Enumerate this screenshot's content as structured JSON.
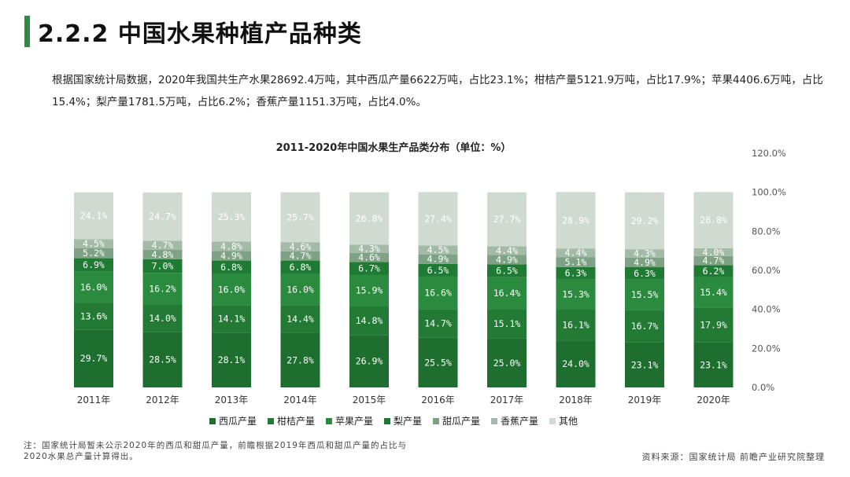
{
  "page": {
    "title": "2.2.2 中国水果种植产品种类",
    "summary": "根据国家统计局数据，2020年我国共生产水果28692.4万吨，其中西瓜产量6622万吨，占比23.1%；柑桔产量5121.9万吨，占比17.9%；苹果4406.6万吨，占比15.4%；梨产量1781.5万吨，占比6.2%；香蕉产量1151.3万吨，占比4.0%。",
    "note_line1": "注：国家统计局暂未公示2020年的西瓜和甜瓜产量，前瞻根据2019年西瓜和甜瓜产量的占比与",
    "note_line2": "2020水果总产量计算得出。",
    "source": "资料来源：国家统计局 前瞻产业研究院整理"
  },
  "chart_data": {
    "type": "bar",
    "stacked": true,
    "title": "2011-2020年中国水果生产品类分布（单位：%）",
    "categories": [
      "2011年",
      "2012年",
      "2013年",
      "2014年",
      "2015年",
      "2016年",
      "2017年",
      "2018年",
      "2019年",
      "2020年"
    ],
    "ylim": [
      0,
      120
    ],
    "y_ticks": [
      "0.0%",
      "20.0%",
      "40.0%",
      "60.0%",
      "80.0%",
      "100.0%",
      "120.0%"
    ],
    "y_axis_side": "right",
    "legend_position": "bottom",
    "series": [
      {
        "name": "西瓜产量",
        "color": "#1d6e2f",
        "values": [
          29.7,
          28.5,
          28.1,
          27.8,
          26.9,
          25.5,
          25.0,
          24.0,
          23.1,
          23.1
        ]
      },
      {
        "name": "柑桔产量",
        "color": "#237a35",
        "values": [
          13.6,
          14.0,
          14.1,
          14.4,
          14.8,
          14.7,
          15.1,
          16.1,
          16.7,
          17.9
        ]
      },
      {
        "name": "苹果产量",
        "color": "#2a8a3e",
        "values": [
          16.0,
          16.2,
          16.0,
          16.0,
          15.9,
          16.6,
          16.4,
          15.3,
          15.5,
          15.4
        ]
      },
      {
        "name": "梨产量",
        "color": "#1f7a33",
        "values": [
          6.9,
          7.0,
          6.8,
          6.8,
          6.7,
          6.5,
          6.5,
          6.3,
          6.3,
          6.2
        ]
      },
      {
        "name": "甜瓜产量",
        "color": "#7fa284",
        "values": [
          5.2,
          4.8,
          4.9,
          4.7,
          4.6,
          4.9,
          4.9,
          5.1,
          4.9,
          4.7
        ]
      },
      {
        "name": "香蕉产量",
        "color": "#a3bba6",
        "values": [
          4.5,
          4.7,
          4.8,
          4.6,
          4.3,
          4.5,
          4.4,
          4.4,
          4.3,
          4.0
        ]
      },
      {
        "name": "其他",
        "color": "#cfdad0",
        "values": [
          24.1,
          24.7,
          25.3,
          25.7,
          26.8,
          27.4,
          27.7,
          28.9,
          29.2,
          28.8
        ]
      }
    ]
  }
}
